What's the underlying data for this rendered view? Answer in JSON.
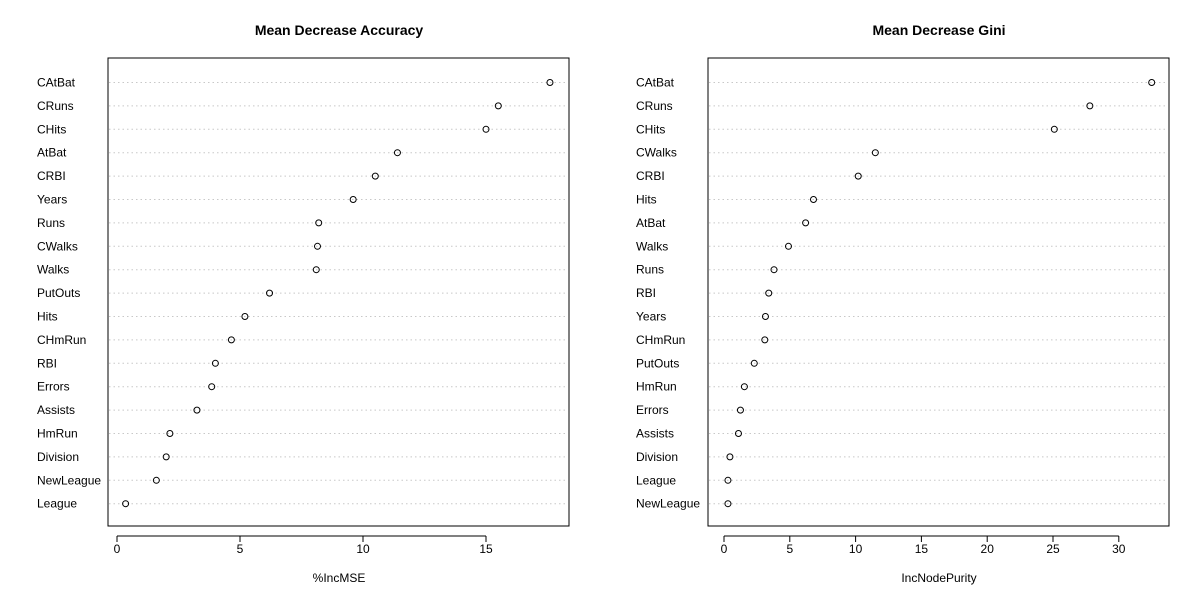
{
  "chart_data": [
    {
      "type": "scatter",
      "title": "Mean Decrease Accuracy",
      "xlabel": "%IncMSE",
      "ylabel": "",
      "xlim": [
        0,
        18
      ],
      "xticks": [
        0,
        5,
        10,
        15
      ],
      "grid": "horizontal-dotted",
      "categories": [
        "CAtBat",
        "CRuns",
        "CHits",
        "AtBat",
        "CRBI",
        "Years",
        "Runs",
        "CWalks",
        "Walks",
        "PutOuts",
        "Hits",
        "CHmRun",
        "RBI",
        "Errors",
        "Assists",
        "HmRun",
        "Division",
        "NewLeague",
        "League"
      ],
      "values": [
        17.6,
        15.5,
        15.0,
        11.4,
        10.5,
        9.6,
        8.2,
        8.15,
        8.1,
        6.2,
        5.2,
        4.65,
        4.0,
        3.85,
        3.25,
        2.15,
        2.0,
        1.6,
        0.35
      ]
    },
    {
      "type": "scatter",
      "title": "Mean Decrease Gini",
      "xlabel": "IncNodePurity",
      "ylabel": "",
      "xlim": [
        0,
        33
      ],
      "xticks": [
        0,
        5,
        10,
        15,
        20,
        25,
        30
      ],
      "grid": "horizontal-dotted",
      "categories": [
        "CAtBat",
        "CRuns",
        "CHits",
        "CWalks",
        "CRBI",
        "Hits",
        "AtBat",
        "Walks",
        "Runs",
        "RBI",
        "Years",
        "CHmRun",
        "PutOuts",
        "HmRun",
        "Errors",
        "Assists",
        "Division",
        "League",
        "NewLeague"
      ],
      "values": [
        32.5,
        27.8,
        25.1,
        11.5,
        10.2,
        6.8,
        6.2,
        4.9,
        3.8,
        3.4,
        3.15,
        3.1,
        2.3,
        1.55,
        1.25,
        1.1,
        0.45,
        0.3,
        0.3
      ]
    }
  ]
}
